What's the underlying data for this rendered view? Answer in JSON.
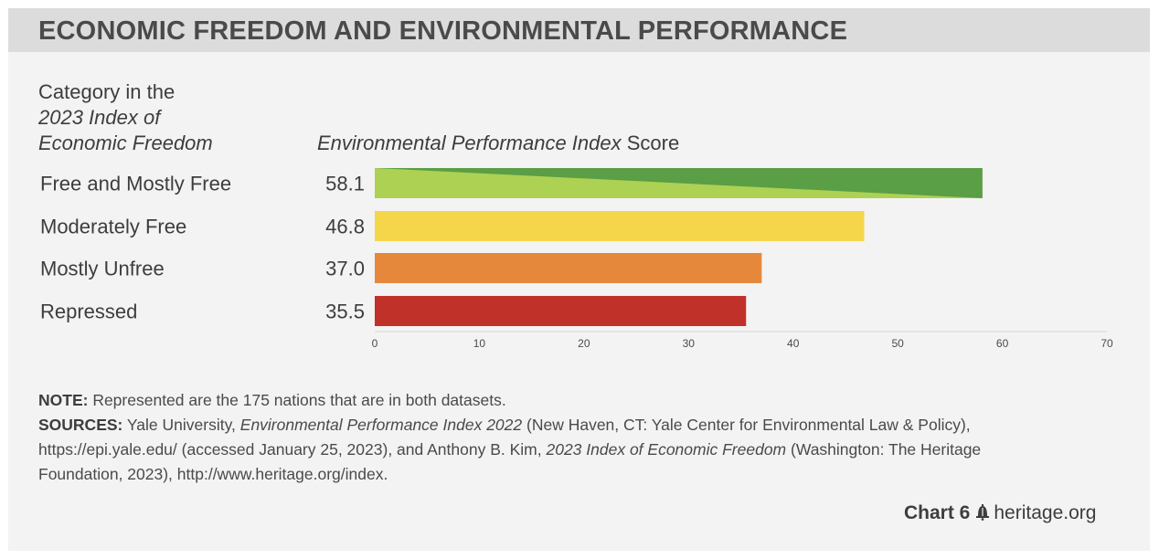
{
  "header": {
    "title": "ECONOMIC FREEDOM AND ENVIRONMENTAL PERFORMANCE",
    "category_line1": "Category in the",
    "category_line2": "2023 Index of",
    "category_line3": "Economic Freedom",
    "score_italic": "Environmental Performance Index",
    "score_plain": "Score"
  },
  "chart_data": {
    "type": "bar",
    "orientation": "horizontal",
    "categories": [
      "Free and Mostly Free",
      "Moderately Free",
      "Mostly Unfree",
      "Repressed"
    ],
    "values": [
      58.1,
      46.8,
      37.0,
      35.5
    ],
    "value_labels": [
      "58.1",
      "46.8",
      "37.0",
      "35.5"
    ],
    "colors": [
      "#5a9e45",
      "#f5d64a",
      "#e5883c",
      "#c0312a"
    ],
    "free_bar_light": "#add153",
    "xlim": [
      0,
      70
    ],
    "xticks": [
      "0",
      "10",
      "20",
      "30",
      "40",
      "50",
      "60",
      "70"
    ],
    "tick_values": [
      0,
      10,
      20,
      30,
      40,
      50,
      60,
      70
    ],
    "grid": false
  },
  "notes": {
    "note_label": "NOTE:",
    "note_text": " Represented are the 175 nations that are in both datasets.",
    "sources_label": "SOURCES:",
    "src_a": " Yale University, ",
    "src_b": "Environmental Performance Index 2022",
    "src_c": " (New Haven, CT: Yale Center for Environmental Law & Policy), https://epi.yale.edu/ (accessed January 25, 2023), and Anthony B. Kim, ",
    "src_d": "2023 Index of Economic Freedom",
    "src_e": " (Washington: The Heritage Foundation, 2023), http://www.heritage.org/index."
  },
  "footer": {
    "chart_number": "Chart 6",
    "site": "heritage.org",
    "logo_icon": "liberty-bell-icon"
  }
}
